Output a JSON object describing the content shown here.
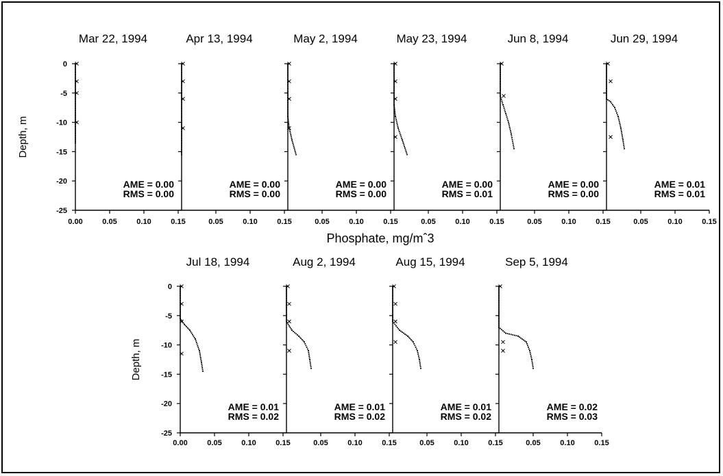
{
  "chart_data": {
    "type": "scatter",
    "xlabel": "Phosphate, mg/mˆ3",
    "ylabel": "Depth, m",
    "xlim": [
      0,
      0.15
    ],
    "ylim": [
      -25,
      0
    ],
    "x_ticks": [
      "0.00",
      "0.05",
      "0.10",
      "0.15"
    ],
    "y_ticks": [
      "0",
      "-5",
      "-10",
      "-15",
      "-20",
      "-25"
    ],
    "stat_labels": {
      "ame": "AME",
      "rms": "RMS",
      "eq": "="
    },
    "panels": [
      {
        "title": "Mar 22, 1994",
        "ame": "0.00",
        "rms": "0.00",
        "model": [
          [
            0.0,
            0
          ],
          [
            0.0,
            -13.5
          ]
        ],
        "observed": [
          [
            0.0,
            0
          ],
          [
            0.0,
            -3
          ],
          [
            0.0,
            -5
          ],
          [
            0.0,
            -10
          ]
        ]
      },
      {
        "title": "Apr 13, 1994",
        "ame": "0.00",
        "rms": "0.00",
        "model": [
          [
            0.0,
            0
          ],
          [
            0.0,
            -15.5
          ]
        ],
        "observed": [
          [
            0.0,
            0
          ],
          [
            0.0,
            -3
          ],
          [
            0.0,
            -6
          ],
          [
            0.0,
            -11
          ]
        ]
      },
      {
        "title": "May  2, 1994",
        "ame": "0.00",
        "rms": "0.00",
        "model": [
          [
            0.0,
            0
          ],
          [
            0.0,
            -9
          ],
          [
            0.002,
            -11
          ],
          [
            0.006,
            -13
          ],
          [
            0.012,
            -15.5
          ]
        ],
        "observed": [
          [
            0.0,
            0
          ],
          [
            0.0,
            -3
          ],
          [
            0.0,
            -6
          ],
          [
            0.0,
            -11
          ]
        ]
      },
      {
        "title": "May 23, 1994",
        "ame": "0.00",
        "rms": "0.01",
        "model": [
          [
            0.0,
            0
          ],
          [
            0.0,
            -7
          ],
          [
            0.002,
            -9
          ],
          [
            0.006,
            -11
          ],
          [
            0.012,
            -13
          ],
          [
            0.019,
            -15.5
          ]
        ],
        "observed": [
          [
            0.0,
            0
          ],
          [
            0.0,
            -3
          ],
          [
            0.0,
            -6
          ],
          [
            0.0,
            -12.5
          ]
        ]
      },
      {
        "title": "Jun  8, 1994",
        "ame": "0.00",
        "rms": "0.00",
        "model": [
          [
            0.0,
            0
          ],
          [
            0.0,
            -5.5
          ],
          [
            0.004,
            -7
          ],
          [
            0.008,
            -8.5
          ],
          [
            0.012,
            -10
          ],
          [
            0.016,
            -12
          ],
          [
            0.02,
            -14.5
          ]
        ],
        "observed": [
          [
            0.0,
            0
          ],
          [
            0.003,
            -5.5
          ]
        ]
      },
      {
        "title": "Jun 29, 1994",
        "ame": "0.01",
        "rms": "0.01",
        "model": [
          [
            0.0,
            0
          ],
          [
            0.0,
            -6
          ],
          [
            0.006,
            -6.5
          ],
          [
            0.012,
            -7.5
          ],
          [
            0.017,
            -9
          ],
          [
            0.021,
            -11
          ],
          [
            0.024,
            -13
          ],
          [
            0.026,
            -14.5
          ]
        ],
        "observed": [
          [
            0.0,
            0
          ],
          [
            0.004,
            -3
          ],
          [
            0.004,
            -12.5
          ]
        ]
      },
      {
        "title": "Jul 18, 1994",
        "ame": "0.01",
        "rms": "0.02",
        "model": [
          [
            0.0,
            0
          ],
          [
            0.0,
            -5.5
          ],
          [
            0.006,
            -6.5
          ],
          [
            0.014,
            -7.5
          ],
          [
            0.022,
            -9
          ],
          [
            0.028,
            -11
          ],
          [
            0.031,
            -13
          ],
          [
            0.033,
            -14.5
          ]
        ],
        "observed": [
          [
            0.0,
            0
          ],
          [
            0.0,
            -3
          ],
          [
            0.0,
            -6
          ],
          [
            0.0,
            -11.5
          ]
        ]
      },
      {
        "title": "Aug  2, 1994",
        "ame": "0.01",
        "rms": "0.02",
        "model": [
          [
            0.0,
            0
          ],
          [
            0.0,
            -6
          ],
          [
            0.008,
            -7.5
          ],
          [
            0.018,
            -8.5
          ],
          [
            0.026,
            -9.5
          ],
          [
            0.032,
            -11
          ],
          [
            0.034,
            -12.5
          ],
          [
            0.036,
            -14
          ]
        ],
        "observed": [
          [
            0.0,
            0
          ],
          [
            0.002,
            -3
          ],
          [
            0.002,
            -6
          ],
          [
            0.002,
            -11
          ]
        ]
      },
      {
        "title": "Aug 15, 1994",
        "ame": "0.01",
        "rms": "0.02",
        "model": [
          [
            0.0,
            0
          ],
          [
            0.0,
            -6
          ],
          [
            0.01,
            -7.5
          ],
          [
            0.022,
            -8.5
          ],
          [
            0.03,
            -9.5
          ],
          [
            0.036,
            -11
          ],
          [
            0.039,
            -12.5
          ],
          [
            0.041,
            -14
          ]
        ],
        "observed": [
          [
            0.0,
            0
          ],
          [
            0.002,
            -3
          ],
          [
            0.002,
            -6
          ],
          [
            0.002,
            -9.5
          ]
        ]
      },
      {
        "title": "Sep  5, 1994",
        "ame": "0.02",
        "rms": "0.03",
        "model": [
          [
            0.0,
            0
          ],
          [
            0.0,
            -7
          ],
          [
            0.01,
            -8
          ],
          [
            0.028,
            -8.5
          ],
          [
            0.04,
            -9.5
          ],
          [
            0.045,
            -11
          ],
          [
            0.048,
            -12.5
          ],
          [
            0.05,
            -14
          ]
        ],
        "observed": [
          [
            0.0,
            0
          ],
          [
            0.004,
            -9.5
          ],
          [
            0.004,
            -11
          ]
        ]
      }
    ]
  }
}
